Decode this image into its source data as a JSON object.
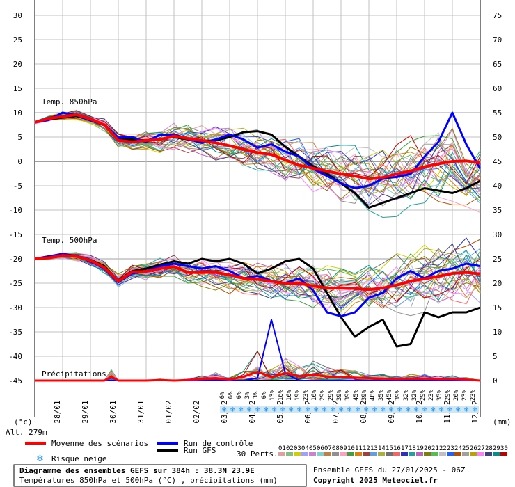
{
  "chart_data": {
    "type": "line",
    "left_axis": {
      "ticks": [
        30,
        25,
        20,
        15,
        10,
        5,
        0,
        -5,
        -10,
        -15,
        -20,
        -25,
        -30,
        -35,
        -40,
        -45
      ],
      "unit_label": "(°c)"
    },
    "right_axis": {
      "ticks": [
        75,
        70,
        65,
        60,
        55,
        50,
        45,
        40,
        35,
        30,
        25,
        20,
        15,
        10,
        5,
        0
      ],
      "unit_label": "(mm)"
    },
    "x_dates": [
      "28/01",
      "29/01",
      "30/01",
      "31/01",
      "01/02",
      "02/02",
      "03/02",
      "04/02",
      "05/02",
      "06/02",
      "07/02",
      "08/02",
      "09/02",
      "10/02",
      "11/02",
      "12/02"
    ],
    "panels": {
      "t850": "Temp. 850hPa",
      "t500": "Temp. 500hPa",
      "precip": "Précipitations"
    },
    "altitude_label": "Alt. 279m",
    "series": {
      "mean_t850": {
        "name": "Moyenne des scénarios",
        "color": "#ff0000",
        "x": [
          0,
          12,
          24,
          36,
          48,
          60,
          72,
          84,
          96,
          108,
          120,
          132,
          144,
          156,
          168,
          180,
          192,
          204,
          216,
          228,
          240,
          252,
          264,
          276,
          288,
          300,
          312,
          324,
          336,
          348,
          360,
          372,
          384
        ],
        "y": [
          8,
          8.8,
          9.2,
          9.6,
          8.7,
          7.5,
          4.3,
          4,
          4.3,
          4.5,
          5.2,
          4.7,
          4.3,
          3.8,
          3.2,
          2.5,
          1.8,
          1.4,
          0.3,
          -0.8,
          -1.4,
          -2,
          -2.6,
          -3,
          -3.6,
          -3.3,
          -2.6,
          -2,
          -1.1,
          -0.5,
          0,
          0.1,
          -0.3
        ]
      },
      "mean_t500": {
        "name": "Moyenne des scénarios",
        "color": "#ff0000",
        "x": [
          0,
          12,
          24,
          36,
          48,
          60,
          72,
          84,
          96,
          108,
          120,
          132,
          144,
          156,
          168,
          180,
          192,
          204,
          216,
          228,
          240,
          252,
          264,
          276,
          288,
          300,
          312,
          324,
          336,
          348,
          360,
          372,
          384
        ],
        "y": [
          -20,
          -19.8,
          -19.3,
          -19.5,
          -20.3,
          -21.8,
          -24.6,
          -22.7,
          -22.6,
          -22,
          -21.6,
          -22.8,
          -22.8,
          -22.8,
          -23.3,
          -24,
          -24.2,
          -24.6,
          -25.1,
          -25,
          -25.6,
          -26,
          -26,
          -26.1,
          -26.3,
          -26,
          -25.4,
          -24.6,
          -24.1,
          -23.6,
          -23,
          -22.8,
          -23.1
        ]
      },
      "mean_precip": {
        "name": "Moyenne des scénarios",
        "color": "#ff0000",
        "x": [
          0,
          12,
          24,
          36,
          48,
          60,
          66,
          72,
          84,
          96,
          108,
          120,
          132,
          144,
          156,
          168,
          180,
          192,
          204,
          216,
          228,
          240,
          252,
          264,
          276,
          288,
          300,
          312,
          324,
          336,
          348,
          360,
          372,
          384
        ],
        "y": [
          0,
          0,
          0,
          0,
          0,
          0,
          0.8,
          0,
          0,
          0,
          0.1,
          0,
          0.1,
          0.3,
          0.5,
          0.2,
          0.8,
          1.8,
          0.7,
          1.5,
          0.9,
          1.2,
          0.8,
          0.7,
          0.6,
          0.5,
          0.4,
          0.3,
          0.4,
          0.4,
          0.3,
          0.3,
          0.2,
          0
        ]
      },
      "control_t850": {
        "name": "Run de contrôle",
        "color": "#0000ff",
        "x": [
          0,
          12,
          24,
          36,
          48,
          60,
          72,
          84,
          96,
          108,
          120,
          132,
          144,
          156,
          168,
          180,
          192,
          204,
          216,
          228,
          240,
          252,
          264,
          276,
          288,
          300,
          312,
          324,
          336,
          348,
          360,
          372,
          384
        ],
        "y": [
          8,
          8.5,
          10,
          9.5,
          8.4,
          7.6,
          4.9,
          5,
          4,
          5.5,
          5.5,
          4.6,
          3.8,
          4.5,
          5.5,
          4.5,
          2.8,
          3.5,
          2,
          1,
          -1.5,
          -3,
          -4.5,
          -5.5,
          -5,
          -3.5,
          -3.2,
          -2.6,
          1,
          4,
          10,
          3.5,
          -1.5
        ]
      },
      "control_t500": {
        "name": "Run de contrôle",
        "color": "#0000ff",
        "x": [
          0,
          12,
          24,
          36,
          48,
          60,
          72,
          84,
          96,
          108,
          120,
          132,
          144,
          156,
          168,
          180,
          192,
          204,
          216,
          228,
          240,
          252,
          264,
          276,
          288,
          300,
          312,
          324,
          336,
          348,
          360,
          372,
          384
        ],
        "y": [
          -20,
          -19.5,
          -19,
          -19.5,
          -20.5,
          -22,
          -24.8,
          -23,
          -22.5,
          -21.5,
          -21,
          -21.5,
          -22,
          -21.5,
          -22.5,
          -24,
          -23.5,
          -24.5,
          -25,
          -24,
          -26.5,
          -31,
          -31.8,
          -31,
          -28,
          -27,
          -24,
          -22.5,
          -24,
          -22.5,
          -22,
          -21,
          -21.5
        ]
      },
      "control_precip": {
        "name": "Run de contrôle",
        "color": "#0000ff",
        "x": [
          0,
          12,
          24,
          36,
          48,
          60,
          72,
          84,
          96,
          108,
          120,
          132,
          144,
          156,
          168,
          180,
          192,
          204,
          216,
          228,
          240,
          252,
          264,
          276,
          288,
          300,
          312,
          324,
          336,
          348,
          360,
          372,
          384
        ],
        "y": [
          0,
          0,
          0,
          0,
          0,
          0,
          0,
          0,
          0,
          0,
          0,
          0,
          0,
          0,
          0,
          0,
          0.5,
          12.5,
          1.5,
          0,
          0,
          0,
          0,
          0,
          0,
          0,
          0,
          0,
          0,
          0,
          0,
          0,
          0
        ]
      },
      "gfs_t850": {
        "name": "Run GFS",
        "color": "#000000",
        "x": [
          0,
          12,
          24,
          36,
          48,
          60,
          72,
          84,
          96,
          108,
          120,
          132,
          144,
          156,
          168,
          180,
          192,
          204,
          216,
          228,
          240,
          252,
          264,
          276,
          288,
          300,
          312,
          324,
          336,
          348,
          360,
          372,
          384
        ],
        "y": [
          8,
          8.6,
          9,
          9.3,
          8.5,
          7.4,
          4.5,
          4.5,
          4.3,
          4.6,
          5,
          4.5,
          4.2,
          4.3,
          5,
          6,
          6.2,
          5.5,
          3,
          1,
          -1,
          -2.5,
          -4.5,
          -6.5,
          -9.5,
          -8.5,
          -7.5,
          -6.5,
          -5.5,
          -6,
          -6.5,
          -5.5,
          -4
        ]
      },
      "gfs_t500": {
        "name": "Run GFS",
        "color": "#000000",
        "x": [
          0,
          12,
          24,
          36,
          48,
          60,
          72,
          84,
          96,
          108,
          120,
          132,
          144,
          156,
          168,
          180,
          192,
          204,
          216,
          228,
          240,
          252,
          264,
          276,
          288,
          300,
          312,
          324,
          336,
          348,
          360,
          372,
          384
        ],
        "y": [
          -20,
          -19.5,
          -19,
          -19.4,
          -20.2,
          -21.5,
          -24.5,
          -22.5,
          -22,
          -21.2,
          -20.5,
          -21,
          -20,
          -20.5,
          -20,
          -21,
          -23,
          -22,
          -20.5,
          -20,
          -22,
          -27,
          -32,
          -36,
          -34,
          -32.5,
          -38,
          -37.5,
          -31,
          -32,
          -31,
          -31,
          -30
        ]
      },
      "gfs_precip": {
        "name": "Run GFS",
        "color": "#000000",
        "x": [
          0,
          12,
          24,
          36,
          48,
          60,
          72,
          84,
          96,
          108,
          120,
          132,
          144,
          156,
          168,
          180,
          192,
          204,
          216,
          228,
          240,
          252,
          264,
          276,
          288,
          300,
          312,
          324,
          336,
          348,
          360,
          372,
          384
        ],
        "y": [
          0,
          0,
          0,
          0,
          0,
          0,
          0,
          0,
          0,
          0,
          0,
          0,
          0,
          0,
          0,
          0,
          0,
          0,
          0,
          0,
          0,
          0,
          0,
          0,
          0,
          0,
          0,
          0,
          0,
          0,
          0,
          0,
          0
        ]
      }
    },
    "snow_risk_percent": [
      "6%",
      "6%",
      "6%",
      "3%",
      "3%",
      "6%",
      "13%",
      "16%",
      "16%",
      "19%",
      "23%",
      "16%",
      "29%",
      "29%",
      "39%",
      "39%",
      "45%",
      "39%",
      "48%",
      "35%",
      "45%",
      "39%",
      "32%",
      "32%",
      "29%",
      "23%",
      "35%",
      "29%",
      "26%",
      "23%",
      "23%"
    ],
    "legend": {
      "mean": "Moyenne des scénarios",
      "control": "Run de contrôle",
      "gfs": "Run GFS",
      "snow": "Risque neige",
      "perts": "30 Perts.",
      "pert_numbers": [
        "01",
        "02",
        "03",
        "04",
        "05",
        "06",
        "07",
        "08",
        "09",
        "10",
        "11",
        "12",
        "13",
        "14",
        "15",
        "16",
        "17",
        "18",
        "19",
        "20",
        "21",
        "22",
        "23",
        "24",
        "25",
        "26",
        "27",
        "28",
        "29",
        "30"
      ],
      "pert_colors": [
        "#e0a0a0",
        "#80c080",
        "#d0d000",
        "#a0a0ff",
        "#d080d0",
        "#80d0d0",
        "#c08040",
        "#909090",
        "#ffa0c0",
        "#40a040",
        "#e08000",
        "#a04040",
        "#60a0e0",
        "#b0b030",
        "#707070",
        "#ff6060",
        "#3030c0",
        "#20a0a0",
        "#c060c0",
        "#808000",
        "#50c050",
        "#c0c0c0",
        "#2060ff",
        "#b05000",
        "#a0a0a0",
        "#c0a000",
        "#ff80ff",
        "#404080",
        "#009090",
        "#c00000"
      ]
    },
    "footer": {
      "title": "Diagramme des ensembles GEFS sur 384h : 38.3N 23.9E",
      "subtitle": "Températures 850hPa et 500hPa (°C) , précipitations (mm)",
      "run": "Ensemble GEFS du 27/01/2025 - 06Z",
      "copyright": "Copyright 2025 Meteociel.fr"
    }
  }
}
